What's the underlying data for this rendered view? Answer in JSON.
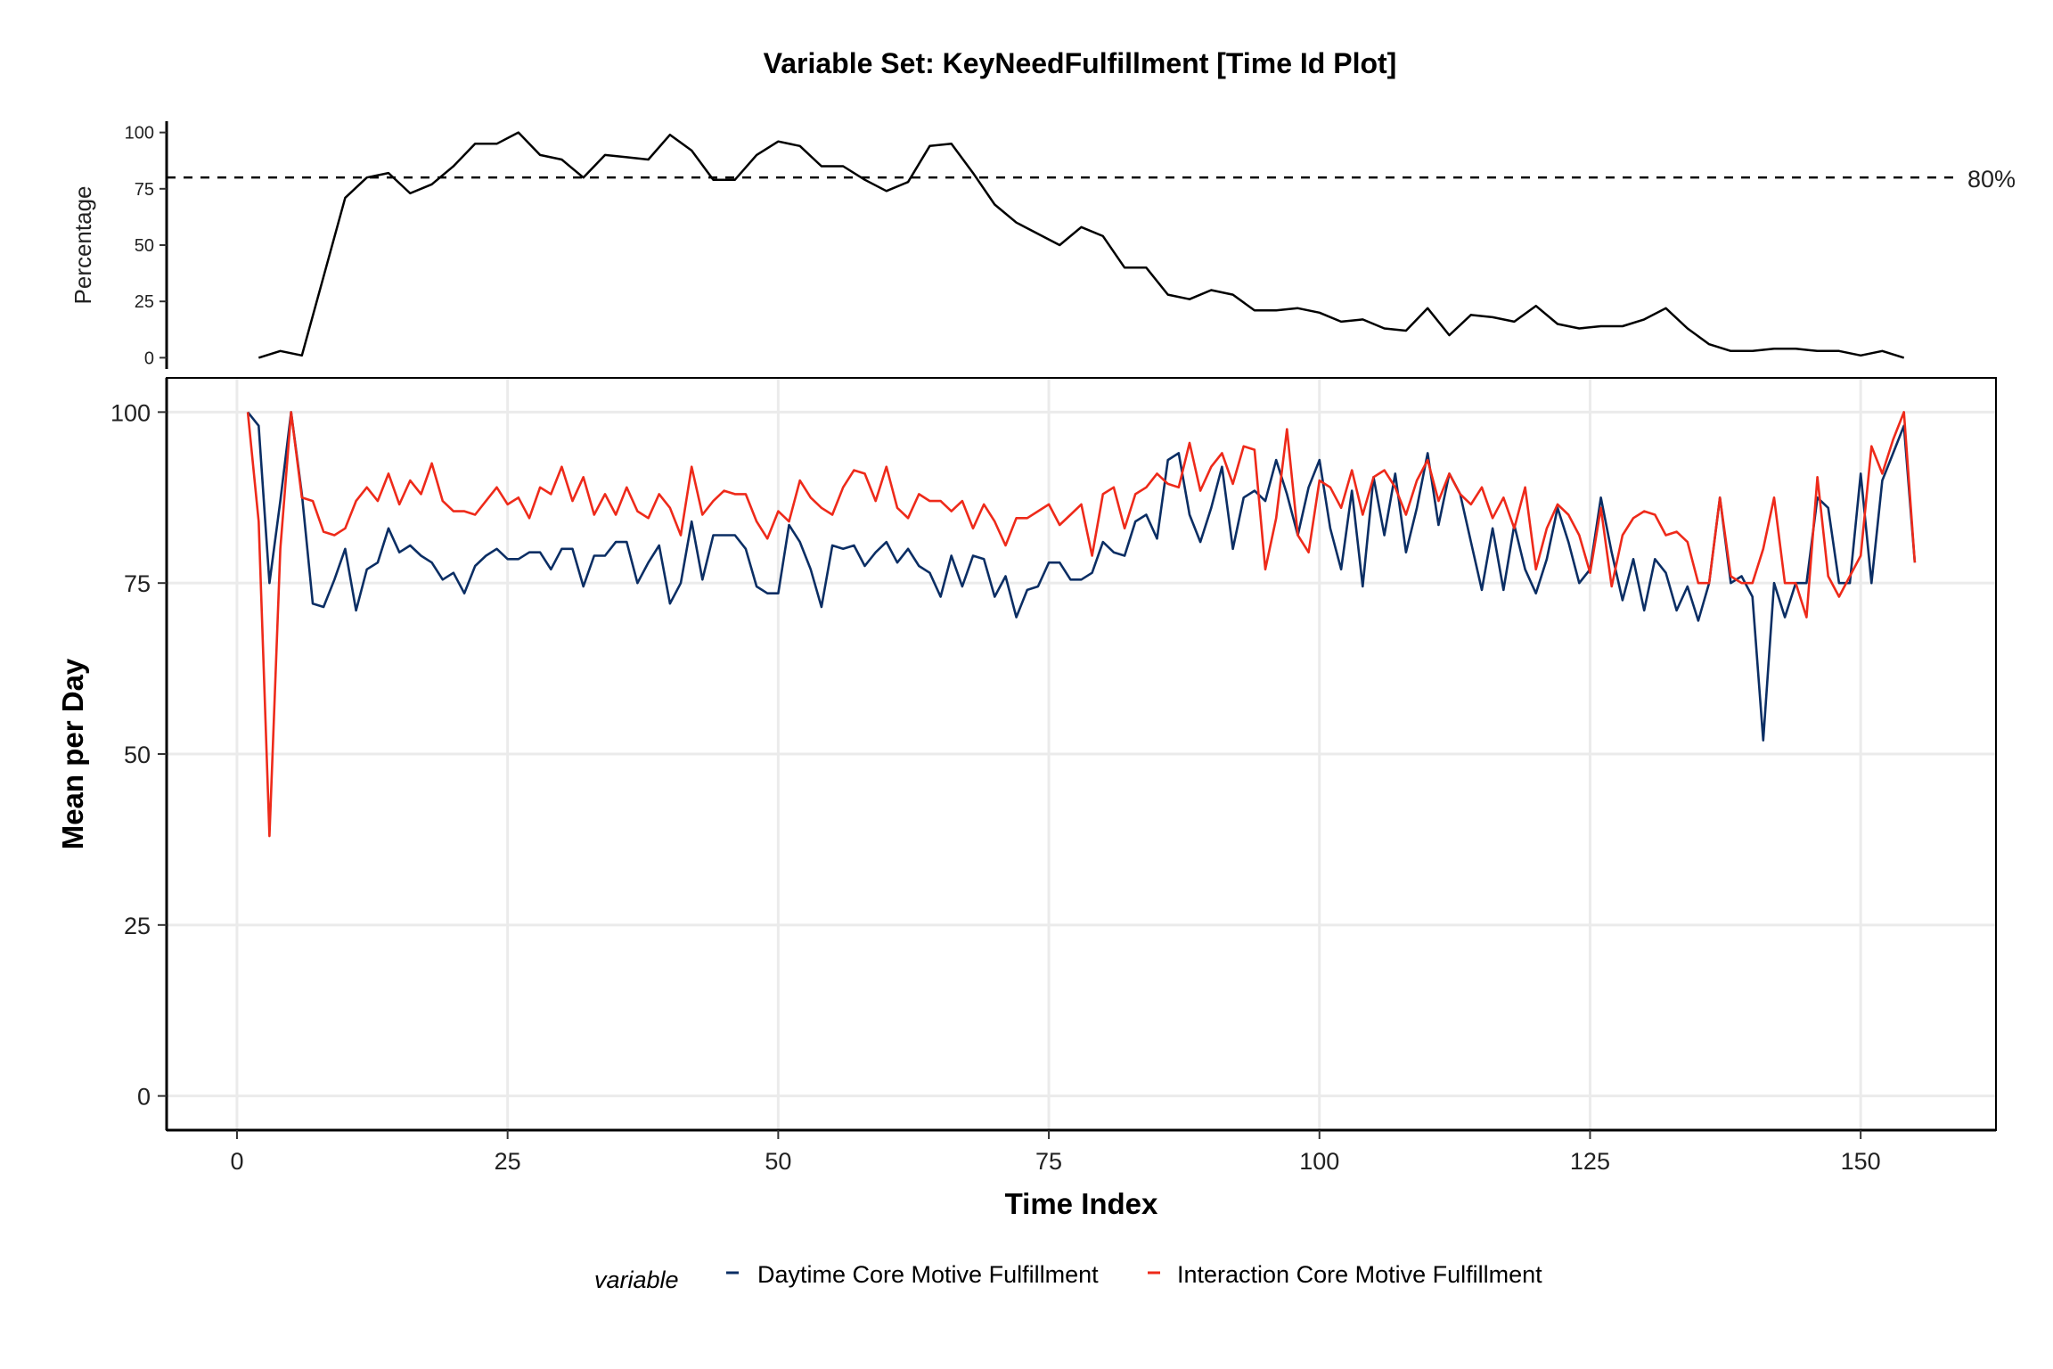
{
  "chart_data": {
    "title": "Variable Set: KeyNeedFulfillment [Time Id Plot]",
    "top_panel": {
      "type": "line",
      "ylabel": "Percentage",
      "ylim": [
        0,
        100
      ],
      "yticks": [
        0,
        25,
        50,
        75,
        100
      ],
      "threshold": 80,
      "threshold_label": "80%",
      "line_color": "#000000",
      "x": [
        2,
        4,
        6,
        8,
        10,
        12,
        14,
        16,
        18,
        20,
        22,
        24,
        26,
        28,
        30,
        32,
        34,
        36,
        38,
        40,
        42,
        44,
        46,
        48,
        50,
        52,
        54,
        56,
        58,
        60,
        62,
        64,
        66,
        68,
        70,
        72,
        74,
        76,
        78,
        80,
        82,
        84,
        86,
        88,
        90,
        92,
        94,
        96,
        98,
        100,
        102,
        104,
        106,
        108,
        110,
        112,
        114,
        116,
        118,
        120,
        122,
        124,
        126,
        128,
        130,
        132,
        134,
        136,
        138,
        140,
        142,
        144,
        146,
        148,
        150,
        152,
        154
      ],
      "values": [
        0,
        3,
        1,
        36,
        71,
        80,
        82,
        73,
        77,
        85,
        95,
        95,
        100,
        90,
        88,
        80,
        90,
        89,
        88,
        99,
        92,
        79,
        79,
        90,
        96,
        94,
        85,
        85,
        79,
        74,
        78,
        94,
        95,
        82,
        68,
        60,
        55,
        50,
        58,
        54,
        40,
        40,
        28,
        26,
        30,
        28,
        21,
        21,
        22,
        20,
        16,
        17,
        13,
        12,
        22,
        10,
        19,
        18,
        16,
        23,
        15,
        13,
        14,
        14,
        17,
        22,
        13,
        6,
        3,
        3,
        4,
        4,
        3,
        3,
        1,
        3,
        0
      ]
    },
    "main_panel": {
      "type": "line",
      "xlabel": "Time Index",
      "ylabel": "Mean per Day",
      "xlim": [
        -6.5,
        162.5
      ],
      "ylim": [
        -5,
        105
      ],
      "xticks": [
        0,
        25,
        50,
        75,
        100,
        125,
        150
      ],
      "yticks": [
        0,
        25,
        50,
        75,
        100
      ],
      "grid": true,
      "legend_position": "bottom",
      "legend_title": "variable",
      "series": [
        {
          "name": "Daytime Core Motive Fulfillment",
          "color": "#0b2e64",
          "x_start": 1,
          "values": [
            100,
            98,
            75,
            87,
            100,
            88,
            72,
            71.5,
            75.5,
            80,
            71,
            77,
            78,
            83,
            79.5,
            80.5,
            79,
            78,
            75.5,
            76.5,
            73.5,
            77.5,
            79,
            80,
            78.5,
            78.5,
            79.5,
            79.5,
            77,
            80,
            80,
            74.5,
            79,
            79,
            81,
            81,
            75,
            78,
            80.5,
            72,
            75,
            84,
            75.5,
            82,
            82,
            82,
            80,
            74.5,
            73.5,
            73.5,
            83.5,
            81,
            77,
            71.5,
            80.5,
            80,
            80.5,
            77.5,
            79.5,
            81,
            78,
            80,
            77.5,
            76.5,
            73,
            79,
            74.5,
            79,
            78.5,
            73,
            76,
            70,
            74,
            74.5,
            78,
            78,
            75.5,
            75.5,
            76.5,
            81,
            79.5,
            79,
            84,
            85,
            81.5,
            93,
            94,
            85,
            81,
            86,
            92,
            80,
            87.5,
            88.5,
            87,
            93,
            88,
            82,
            89,
            93,
            83,
            77,
            88.5,
            74.5,
            90.5,
            82,
            91,
            79.5,
            86,
            94,
            83.5,
            91,
            88,
            81,
            74,
            83,
            74,
            83.5,
            77,
            73.5,
            78.5,
            86,
            81,
            75,
            77,
            87.5,
            79.5,
            72.5,
            78.5,
            71,
            78.5,
            76.5,
            71,
            74.5,
            69.5,
            75,
            87.5,
            75,
            76,
            73,
            52,
            75,
            70,
            75,
            75,
            87.5,
            86,
            75,
            75,
            91,
            75,
            90,
            94,
            98,
            78
          ]
        },
        {
          "name": "Interaction Core Motive Fulfillment",
          "color": "#ee2a1a",
          "x_start": 1,
          "values": [
            100,
            84,
            38,
            80,
            100,
            87.5,
            87,
            82.5,
            82,
            83,
            87,
            89,
            87,
            91,
            86.5,
            90,
            88,
            92.5,
            87,
            85.5,
            85.5,
            85,
            87,
            89,
            86.5,
            87.5,
            84.5,
            89,
            88,
            92,
            87,
            90.5,
            85,
            88,
            85,
            89,
            85.5,
            84.5,
            88,
            86,
            82,
            92,
            85,
            87,
            88.5,
            88,
            88,
            84,
            81.5,
            85.5,
            84,
            90,
            87.5,
            86,
            85,
            89,
            91.5,
            91,
            87,
            92,
            86,
            84.5,
            88,
            87,
            87,
            85.5,
            87,
            83,
            86.5,
            84,
            80.5,
            84.5,
            84.5,
            85.5,
            86.5,
            83.5,
            85,
            86.5,
            79,
            88,
            89,
            83,
            88,
            89,
            91,
            89.5,
            89,
            95.5,
            88.5,
            92,
            94,
            89.5,
            95,
            94.5,
            77,
            84.5,
            97.5,
            82,
            79.5,
            90,
            89,
            86,
            91.5,
            85,
            90.5,
            91.5,
            89,
            85,
            90,
            93,
            87,
            91,
            88,
            86.5,
            89,
            84.5,
            87.5,
            83,
            89,
            77,
            83,
            86.5,
            85,
            82,
            76.5,
            86,
            74.5,
            82,
            84.5,
            85.5,
            85,
            82,
            82.5,
            81,
            75,
            75,
            87.5,
            76,
            75,
            75,
            80,
            87.5,
            75,
            75,
            70,
            90.5,
            76,
            73,
            76,
            79,
            95,
            91,
            96,
            100,
            78
          ]
        }
      ]
    }
  }
}
